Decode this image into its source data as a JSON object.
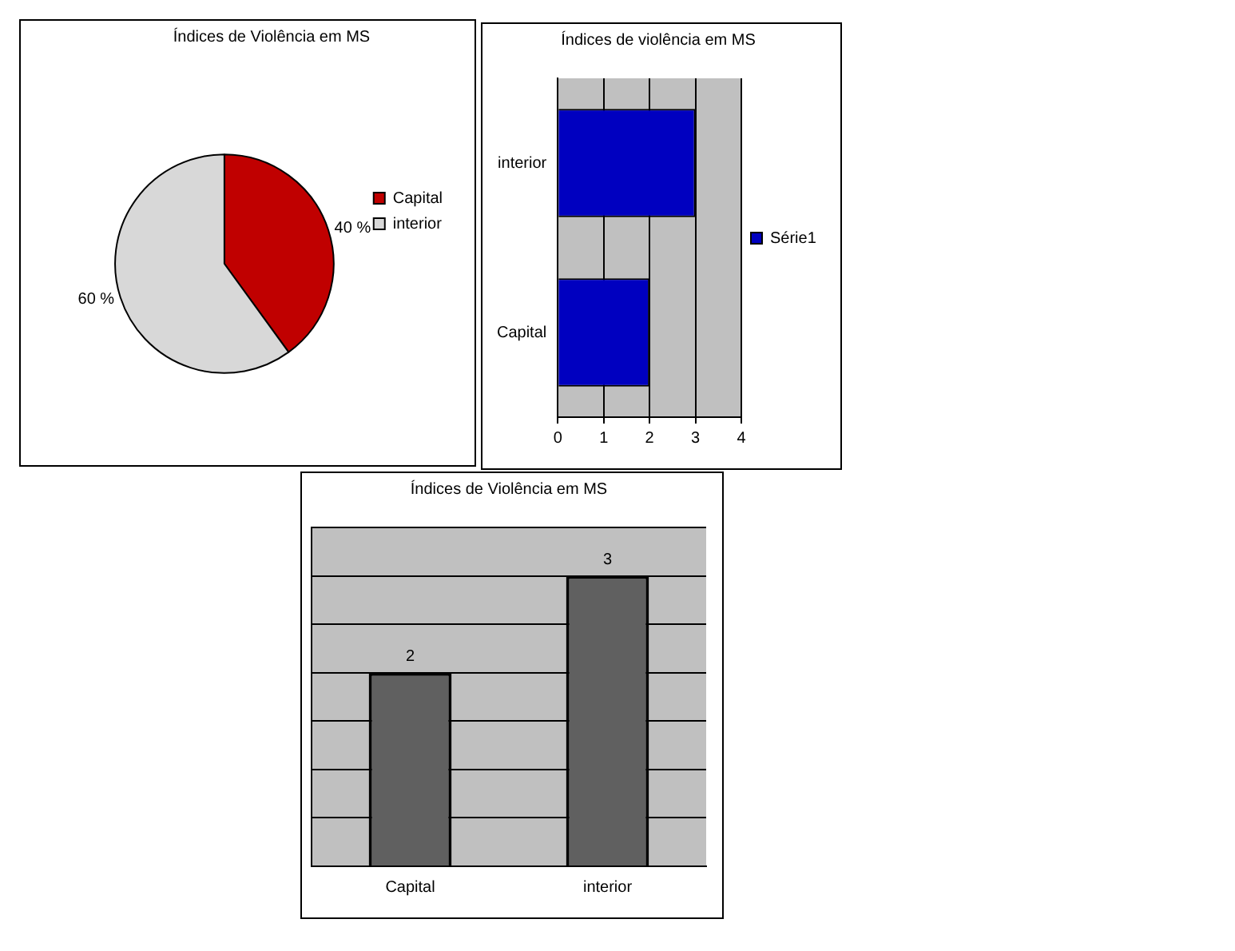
{
  "chart_data": [
    {
      "type": "pie",
      "title": "Índices de Violência em MS",
      "categories": [
        "Capital",
        "interior"
      ],
      "values": [
        40,
        60
      ],
      "colors": [
        "#c00000",
        "#d8d8d8"
      ],
      "value_labels": [
        "40 %",
        "60 %"
      ],
      "legend": "right"
    },
    {
      "type": "bar",
      "orientation": "horizontal",
      "title": "Índices de violência em MS",
      "categories": [
        "interior",
        "Capital"
      ],
      "series": [
        {
          "name": "Série1",
          "color": "#0000c0",
          "values": [
            3,
            2
          ]
        }
      ],
      "xlim": [
        0,
        4
      ],
      "xticks": [
        0,
        1,
        2,
        3,
        4
      ],
      "grid": "x",
      "legend": "right"
    },
    {
      "type": "bar",
      "title": "Índices de Violência em MS",
      "categories": [
        "Capital",
        "interior"
      ],
      "values": [
        2,
        3
      ],
      "color": "#606060",
      "grid": "y",
      "tick_labels": "x",
      "data_labels": true
    }
  ]
}
